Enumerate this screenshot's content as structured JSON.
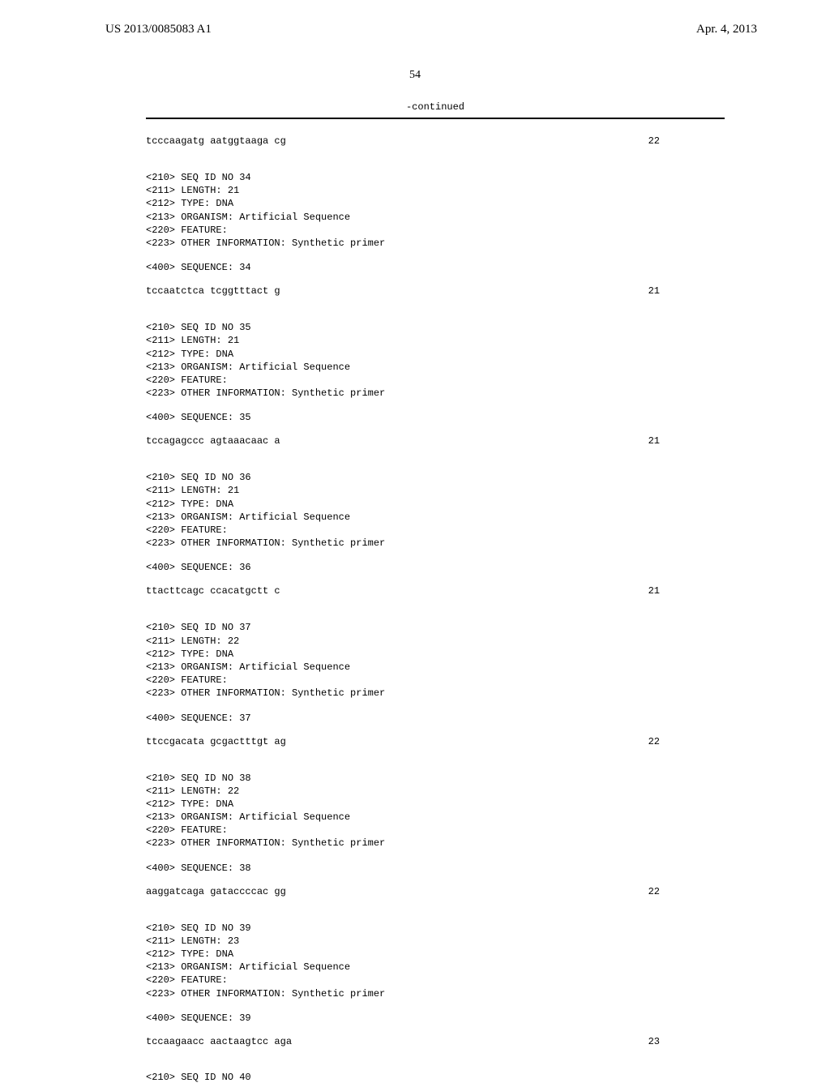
{
  "header": {
    "pub_number": "US 2013/0085083 A1",
    "pub_date": "Apr. 4, 2013"
  },
  "page_number": "54",
  "continued_label": "-continued",
  "entries": [
    {
      "has_meta": false,
      "sequence_text": "tcccaagatg aatggtaaga cg",
      "length": "22"
    },
    {
      "has_meta": true,
      "meta": "<210> SEQ ID NO 34\n<211> LENGTH: 21\n<212> TYPE: DNA\n<213> ORGANISM: Artificial Sequence\n<220> FEATURE:\n<223> OTHER INFORMATION: Synthetic primer",
      "seq_label": "<400> SEQUENCE: 34",
      "sequence_text": "tccaatctca tcggtttact g",
      "length": "21"
    },
    {
      "has_meta": true,
      "meta": "<210> SEQ ID NO 35\n<211> LENGTH: 21\n<212> TYPE: DNA\n<213> ORGANISM: Artificial Sequence\n<220> FEATURE:\n<223> OTHER INFORMATION: Synthetic primer",
      "seq_label": "<400> SEQUENCE: 35",
      "sequence_text": "tccagagccc agtaaacaac a",
      "length": "21"
    },
    {
      "has_meta": true,
      "meta": "<210> SEQ ID NO 36\n<211> LENGTH: 21\n<212> TYPE: DNA\n<213> ORGANISM: Artificial Sequence\n<220> FEATURE:\n<223> OTHER INFORMATION: Synthetic primer",
      "seq_label": "<400> SEQUENCE: 36",
      "sequence_text": "ttacttcagc ccacatgctt c",
      "length": "21"
    },
    {
      "has_meta": true,
      "meta": "<210> SEQ ID NO 37\n<211> LENGTH: 22\n<212> TYPE: DNA\n<213> ORGANISM: Artificial Sequence\n<220> FEATURE:\n<223> OTHER INFORMATION: Synthetic primer",
      "seq_label": "<400> SEQUENCE: 37",
      "sequence_text": "ttccgacata gcgactttgt ag",
      "length": "22"
    },
    {
      "has_meta": true,
      "meta": "<210> SEQ ID NO 38\n<211> LENGTH: 22\n<212> TYPE: DNA\n<213> ORGANISM: Artificial Sequence\n<220> FEATURE:\n<223> OTHER INFORMATION: Synthetic primer",
      "seq_label": "<400> SEQUENCE: 38",
      "sequence_text": "aaggatcaga gataccccac gg",
      "length": "22"
    },
    {
      "has_meta": true,
      "meta": "<210> SEQ ID NO 39\n<211> LENGTH: 23\n<212> TYPE: DNA\n<213> ORGANISM: Artificial Sequence\n<220> FEATURE:\n<223> OTHER INFORMATION: Synthetic primer",
      "seq_label": "<400> SEQUENCE: 39",
      "sequence_text": "tccaagaacc aactaagtcc aga",
      "length": "23"
    }
  ],
  "trailing_id": "<210> SEQ ID NO 40"
}
